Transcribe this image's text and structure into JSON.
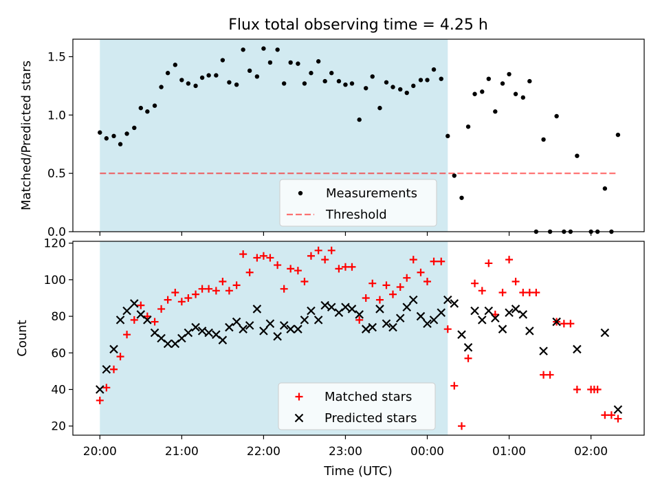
{
  "chart_data": {
    "type": "scatter",
    "title": "Flux total observing time = 4.25 h",
    "xlabel": "Time (UTC)",
    "x_unit": "hours since 20:00 UTC",
    "xlim": [
      -0.33,
      6.65
    ],
    "xticks": [
      {
        "value": 0,
        "label": "20:00"
      },
      {
        "value": 1,
        "label": "21:00"
      },
      {
        "value": 2,
        "label": "22:00"
      },
      {
        "value": 3,
        "label": "23:00"
      },
      {
        "value": 4,
        "label": "00:00"
      },
      {
        "value": 5,
        "label": "01:00"
      },
      {
        "value": 6,
        "label": "02:00"
      }
    ],
    "shaded_interval": [
      0,
      4.25
    ],
    "colors": {
      "shade": "#add8e6",
      "threshold": "#ff0000",
      "matched": "#ff0000",
      "predicted": "#000000",
      "measurements": "#000000"
    },
    "panels": [
      {
        "ylabel": "Matched/Predicted stars",
        "ylim": [
          0,
          1.65
        ],
        "yticks": [
          "0.0",
          "0.5",
          "1.0",
          "1.5"
        ],
        "threshold": {
          "name": "Threshold",
          "value": 0.5
        },
        "legend": {
          "position": "lower-right",
          "entries": [
            "Measurements",
            "Threshold"
          ]
        },
        "series": [
          {
            "name": "Measurements",
            "points": [
              [
                0.0,
                0.85
              ],
              [
                0.08,
                0.8
              ],
              [
                0.17,
                0.82
              ],
              [
                0.25,
                0.75
              ],
              [
                0.33,
                0.84
              ],
              [
                0.42,
                0.89
              ],
              [
                0.5,
                1.06
              ],
              [
                0.58,
                1.03
              ],
              [
                0.67,
                1.08
              ],
              [
                0.75,
                1.24
              ],
              [
                0.83,
                1.36
              ],
              [
                0.92,
                1.43
              ],
              [
                1.0,
                1.3
              ],
              [
                1.08,
                1.27
              ],
              [
                1.17,
                1.25
              ],
              [
                1.25,
                1.32
              ],
              [
                1.33,
                1.34
              ],
              [
                1.42,
                1.34
              ],
              [
                1.5,
                1.47
              ],
              [
                1.58,
                1.28
              ],
              [
                1.67,
                1.26
              ],
              [
                1.75,
                1.56
              ],
              [
                1.83,
                1.38
              ],
              [
                1.92,
                1.33
              ],
              [
                2.0,
                1.57
              ],
              [
                2.08,
                1.45
              ],
              [
                2.17,
                1.56
              ],
              [
                2.25,
                1.27
              ],
              [
                2.33,
                1.45
              ],
              [
                2.42,
                1.44
              ],
              [
                2.5,
                1.27
              ],
              [
                2.58,
                1.36
              ],
              [
                2.67,
                1.46
              ],
              [
                2.75,
                1.29
              ],
              [
                2.83,
                1.36
              ],
              [
                2.92,
                1.29
              ],
              [
                3.0,
                1.26
              ],
              [
                3.08,
                1.27
              ],
              [
                3.17,
                0.96
              ],
              [
                3.25,
                1.23
              ],
              [
                3.33,
                1.33
              ],
              [
                3.42,
                1.06
              ],
              [
                3.5,
                1.28
              ],
              [
                3.58,
                1.24
              ],
              [
                3.67,
                1.22
              ],
              [
                3.75,
                1.19
              ],
              [
                3.83,
                1.25
              ],
              [
                3.92,
                1.3
              ],
              [
                4.0,
                1.3
              ],
              [
                4.08,
                1.39
              ],
              [
                4.17,
                1.31
              ],
              [
                4.25,
                0.82
              ],
              [
                4.33,
                0.48
              ],
              [
                4.42,
                0.29
              ],
              [
                4.5,
                0.9
              ],
              [
                4.58,
                1.18
              ],
              [
                4.67,
                1.2
              ],
              [
                4.75,
                1.31
              ],
              [
                4.83,
                1.03
              ],
              [
                4.92,
                1.27
              ],
              [
                5.0,
                1.35
              ],
              [
                5.08,
                1.18
              ],
              [
                5.17,
                1.15
              ],
              [
                5.25,
                1.29
              ],
              [
                5.33,
                0.0
              ],
              [
                5.42,
                0.79
              ],
              [
                5.5,
                0.0
              ],
              [
                5.58,
                0.99
              ],
              [
                5.67,
                0.0
              ],
              [
                5.75,
                0.0
              ],
              [
                5.83,
                0.65
              ],
              [
                6.0,
                0.0
              ],
              [
                6.08,
                0.0
              ],
              [
                6.17,
                0.37
              ],
              [
                6.25,
                0.0
              ],
              [
                6.33,
                0.83
              ]
            ]
          }
        ]
      },
      {
        "ylabel": "Count",
        "ylim": [
          15,
          121
        ],
        "yticks": [
          "20",
          "40",
          "60",
          "80",
          "100",
          "120"
        ],
        "legend": {
          "position": "lower-right",
          "entries": [
            "Matched stars",
            "Predicted stars"
          ]
        },
        "series": [
          {
            "name": "Matched stars",
            "marker": "plus",
            "points": [
              [
                0.0,
                34
              ],
              [
                0.08,
                41
              ],
              [
                0.17,
                51
              ],
              [
                0.25,
                58
              ],
              [
                0.33,
                70
              ],
              [
                0.42,
                78
              ],
              [
                0.5,
                86
              ],
              [
                0.58,
                80
              ],
              [
                0.67,
                77
              ],
              [
                0.75,
                84
              ],
              [
                0.83,
                89
              ],
              [
                0.92,
                93
              ],
              [
                1.0,
                88
              ],
              [
                1.08,
                90
              ],
              [
                1.17,
                92
              ],
              [
                1.25,
                95
              ],
              [
                1.33,
                95
              ],
              [
                1.42,
                94
              ],
              [
                1.5,
                99
              ],
              [
                1.58,
                94
              ],
              [
                1.67,
                97
              ],
              [
                1.75,
                114
              ],
              [
                1.83,
                104
              ],
              [
                1.92,
                112
              ],
              [
                2.0,
                113
              ],
              [
                2.08,
                112
              ],
              [
                2.17,
                108
              ],
              [
                2.25,
                95
              ],
              [
                2.33,
                106
              ],
              [
                2.42,
                105
              ],
              [
                2.5,
                99
              ],
              [
                2.58,
                113
              ],
              [
                2.67,
                116
              ],
              [
                2.75,
                111
              ],
              [
                2.83,
                116
              ],
              [
                2.92,
                106
              ],
              [
                3.0,
                107
              ],
              [
                3.08,
                107
              ],
              [
                3.17,
                78
              ],
              [
                3.25,
                90
              ],
              [
                3.33,
                98
              ],
              [
                3.42,
                89
              ],
              [
                3.5,
                97
              ],
              [
                3.58,
                92
              ],
              [
                3.67,
                96
              ],
              [
                3.75,
                101
              ],
              [
                3.83,
                111
              ],
              [
                3.92,
                104
              ],
              [
                4.0,
                99
              ],
              [
                4.08,
                110
              ],
              [
                4.17,
                110
              ],
              [
                4.25,
                73
              ],
              [
                4.33,
                42
              ],
              [
                4.42,
                20
              ],
              [
                4.5,
                57
              ],
              [
                4.58,
                98
              ],
              [
                4.67,
                94
              ],
              [
                4.75,
                109
              ],
              [
                4.83,
                81
              ],
              [
                4.92,
                93
              ],
              [
                5.0,
                111
              ],
              [
                5.08,
                99
              ],
              [
                5.17,
                93
              ],
              [
                5.25,
                93
              ],
              [
                5.33,
                93
              ],
              [
                5.42,
                48
              ],
              [
                5.5,
                48
              ],
              [
                5.58,
                77
              ],
              [
                5.67,
                76
              ],
              [
                5.75,
                76
              ],
              [
                5.83,
                40
              ],
              [
                6.0,
                40
              ],
              [
                6.04,
                40
              ],
              [
                6.08,
                40
              ],
              [
                6.17,
                26
              ],
              [
                6.25,
                26
              ],
              [
                6.33,
                24
              ]
            ]
          },
          {
            "name": "Predicted stars",
            "marker": "x",
            "points": [
              [
                0.0,
                40
              ],
              [
                0.08,
                51
              ],
              [
                0.17,
                62
              ],
              [
                0.25,
                78
              ],
              [
                0.33,
                83
              ],
              [
                0.42,
                87
              ],
              [
                0.5,
                81
              ],
              [
                0.58,
                78
              ],
              [
                0.67,
                71
              ],
              [
                0.75,
                68
              ],
              [
                0.83,
                65
              ],
              [
                0.92,
                65
              ],
              [
                1.0,
                68
              ],
              [
                1.08,
                71
              ],
              [
                1.17,
                74
              ],
              [
                1.25,
                72
              ],
              [
                1.33,
                71
              ],
              [
                1.42,
                70
              ],
              [
                1.5,
                67
              ],
              [
                1.58,
                74
              ],
              [
                1.67,
                77
              ],
              [
                1.75,
                73
              ],
              [
                1.83,
                75
              ],
              [
                1.92,
                84
              ],
              [
                2.0,
                72
              ],
              [
                2.08,
                76
              ],
              [
                2.17,
                69
              ],
              [
                2.25,
                75
              ],
              [
                2.33,
                73
              ],
              [
                2.42,
                73
              ],
              [
                2.5,
                78
              ],
              [
                2.58,
                83
              ],
              [
                2.67,
                78
              ],
              [
                2.75,
                86
              ],
              [
                2.83,
                85
              ],
              [
                2.92,
                82
              ],
              [
                3.0,
                85
              ],
              [
                3.08,
                84
              ],
              [
                3.17,
                81
              ],
              [
                3.25,
                73
              ],
              [
                3.33,
                74
              ],
              [
                3.42,
                84
              ],
              [
                3.5,
                76
              ],
              [
                3.58,
                74
              ],
              [
                3.67,
                79
              ],
              [
                3.75,
                85
              ],
              [
                3.83,
                89
              ],
              [
                3.92,
                80
              ],
              [
                4.0,
                76
              ],
              [
                4.08,
                78
              ],
              [
                4.17,
                82
              ],
              [
                4.25,
                89
              ],
              [
                4.33,
                87
              ],
              [
                4.42,
                70
              ],
              [
                4.5,
                63
              ],
              [
                4.58,
                83
              ],
              [
                4.67,
                78
              ],
              [
                4.75,
                83
              ],
              [
                4.83,
                79
              ],
              [
                4.92,
                73
              ],
              [
                5.0,
                82
              ],
              [
                5.08,
                84
              ],
              [
                5.17,
                81
              ],
              [
                5.25,
                72
              ],
              [
                5.42,
                61
              ],
              [
                5.58,
                77
              ],
              [
                5.83,
                62
              ],
              [
                6.17,
                71
              ],
              [
                6.33,
                29
              ]
            ]
          }
        ]
      }
    ]
  }
}
